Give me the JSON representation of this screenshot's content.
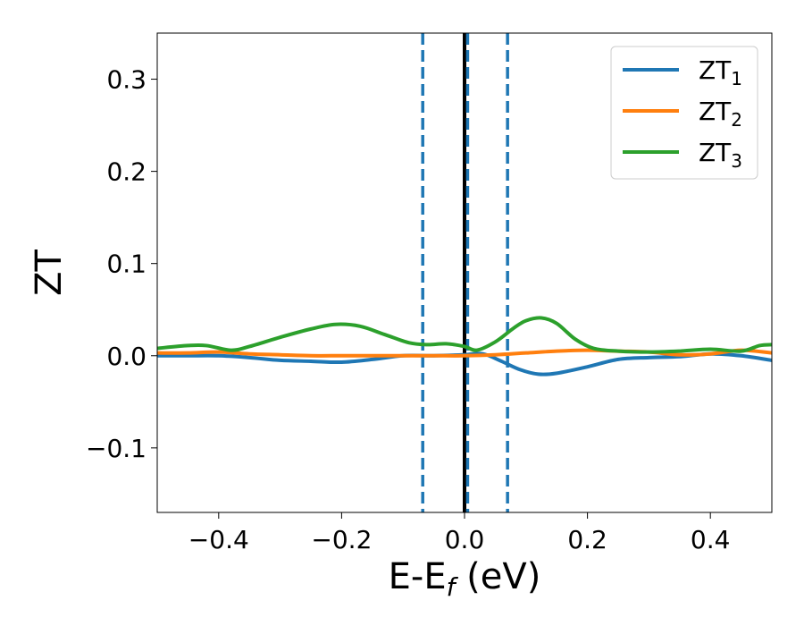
{
  "chart_data": {
    "type": "line",
    "title": "",
    "xlabel": "E-E",
    "xlabel_sub": "f",
    "xlabel_unit": " (eV)",
    "ylabel": "ZT",
    "xlim": [
      -0.5,
      0.5
    ],
    "ylim": [
      -0.17,
      0.35
    ],
    "xticks": [
      -0.4,
      -0.2,
      0.0,
      0.2,
      0.4
    ],
    "xtick_labels": [
      "−0.4",
      "−0.2",
      "0.0",
      "0.2",
      "0.4"
    ],
    "yticks": [
      -0.1,
      0.0,
      0.1,
      0.2,
      0.3
    ],
    "ytick_labels": [
      "−0.1",
      "0.0",
      "0.1",
      "0.2",
      "0.3"
    ],
    "grid": false,
    "legend_position": "top-right",
    "vertical_lines": [
      {
        "x": -0.068,
        "style": "dashed",
        "color": "#1f77b4"
      },
      {
        "x": 0.0,
        "style": "solid",
        "color": "#000000"
      },
      {
        "x": 0.005,
        "style": "dashed",
        "color": "#1f77b4"
      },
      {
        "x": 0.07,
        "style": "dashed",
        "color": "#1f77b4"
      }
    ],
    "series": [
      {
        "name": "ZT",
        "name_sub": "1",
        "color": "#1f77b4",
        "x": [
          -0.5,
          -0.45,
          -0.4,
          -0.35,
          -0.3,
          -0.25,
          -0.2,
          -0.15,
          -0.1,
          -0.05,
          0.0,
          0.03,
          0.06,
          0.09,
          0.12,
          0.15,
          0.2,
          0.25,
          0.3,
          0.35,
          0.4,
          0.45,
          0.5
        ],
        "y": [
          0.0,
          0.0,
          0.0,
          -0.002,
          -0.005,
          -0.006,
          -0.007,
          -0.004,
          0.0,
          0.0,
          0.001,
          0.002,
          -0.006,
          -0.015,
          -0.02,
          -0.019,
          -0.012,
          -0.004,
          -0.002,
          -0.001,
          0.002,
          0.0,
          -0.005
        ]
      },
      {
        "name": "ZT",
        "name_sub": "2",
        "color": "#ff7f0e",
        "x": [
          -0.5,
          -0.45,
          -0.4,
          -0.35,
          -0.3,
          -0.25,
          -0.2,
          -0.15,
          -0.1,
          -0.05,
          0.0,
          0.05,
          0.1,
          0.15,
          0.2,
          0.25,
          0.3,
          0.35,
          0.4,
          0.45,
          0.5
        ],
        "y": [
          0.003,
          0.003,
          0.004,
          0.002,
          0.001,
          0.0,
          0.0,
          0.0,
          0.0,
          0.0,
          0.0,
          0.001,
          0.003,
          0.005,
          0.006,
          0.005,
          0.004,
          0.001,
          0.002,
          0.006,
          0.003
        ]
      },
      {
        "name": "ZT",
        "name_sub": "3",
        "color": "#2ca02c",
        "x": [
          -0.5,
          -0.45,
          -0.42,
          -0.38,
          -0.35,
          -0.3,
          -0.25,
          -0.21,
          -0.17,
          -0.13,
          -0.09,
          -0.06,
          -0.03,
          0.0,
          0.02,
          0.05,
          0.08,
          0.1,
          0.125,
          0.15,
          0.18,
          0.21,
          0.25,
          0.3,
          0.35,
          0.4,
          0.45,
          0.48,
          0.5
        ],
        "y": [
          0.008,
          0.011,
          0.011,
          0.006,
          0.01,
          0.02,
          0.029,
          0.034,
          0.032,
          0.023,
          0.014,
          0.012,
          0.013,
          0.01,
          0.006,
          0.015,
          0.03,
          0.038,
          0.041,
          0.035,
          0.018,
          0.008,
          0.005,
          0.004,
          0.005,
          0.007,
          0.005,
          0.011,
          0.012
        ]
      }
    ]
  }
}
